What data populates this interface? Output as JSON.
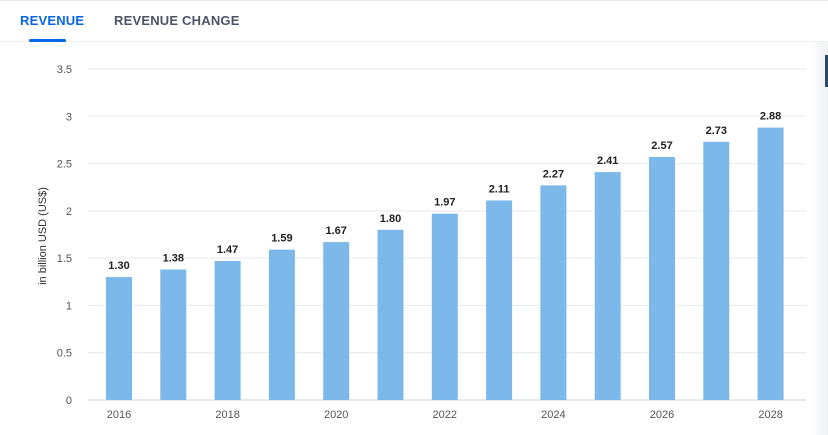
{
  "tabs": [
    {
      "label": "REVENUE",
      "active": true
    },
    {
      "label": "REVENUE CHANGE",
      "active": false
    }
  ],
  "chart_data": {
    "type": "bar",
    "categories": [
      "2016",
      "2017",
      "2018",
      "2019",
      "2020",
      "2021",
      "2022",
      "2023",
      "2024",
      "2025",
      "2026",
      "2027",
      "2028"
    ],
    "values": [
      1.3,
      1.38,
      1.47,
      1.59,
      1.67,
      1.8,
      1.97,
      2.11,
      2.27,
      2.41,
      2.57,
      2.73,
      2.88
    ],
    "data_labels": [
      "1.30",
      "1.38",
      "1.47",
      "1.59",
      "1.67",
      "1.80",
      "1.97",
      "2.11",
      "2.27",
      "2.41",
      "2.57",
      "2.73",
      "2.88"
    ],
    "x_tick_labels": [
      "2016",
      "2018",
      "2020",
      "2022",
      "2024",
      "2026",
      "2028"
    ],
    "y_ticks": [
      "0",
      "0.5",
      "1",
      "1.5",
      "2",
      "2.5",
      "3",
      "3.5"
    ],
    "ylabel": "in billion USD (US$)",
    "ylim": [
      0,
      3.5
    ],
    "grid": true,
    "bar_color": "#7cb9ea"
  }
}
